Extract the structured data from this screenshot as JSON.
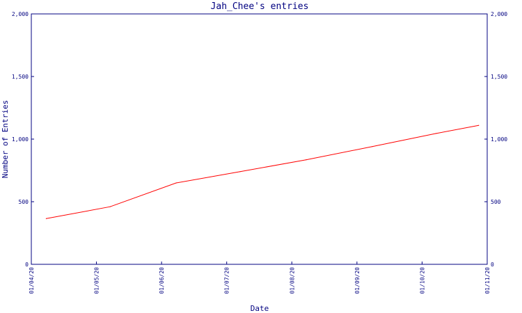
{
  "chart_data": {
    "type": "line",
    "title": "Jah_Chee's entries",
    "xlabel": "Date",
    "ylabel": "Number of Entries",
    "x_ticks": [
      "01/04/20",
      "01/05/20",
      "01/06/20",
      "01/07/20",
      "01/08/20",
      "01/09/20",
      "01/10/20",
      "01/11/20"
    ],
    "y_ticks": [
      "0",
      "500",
      "1,000",
      "1,500",
      "2,000"
    ],
    "ylim": [
      0,
      2000
    ],
    "xlim": [
      "2020-04-01",
      "2020-11-01"
    ],
    "grid": false,
    "colors": {
      "axis": "#000080",
      "line": "#ff0000",
      "background": "#ffffff"
    },
    "series": [
      {
        "x": [
          "2020-04-08",
          "2020-05-08",
          "2020-06-08",
          "2020-07-08",
          "2020-08-08",
          "2020-09-08",
          "2020-10-08",
          "2020-10-28"
        ],
        "values": [
          365,
          460,
          650,
          740,
          835,
          940,
          1045,
          1110
        ]
      }
    ]
  }
}
